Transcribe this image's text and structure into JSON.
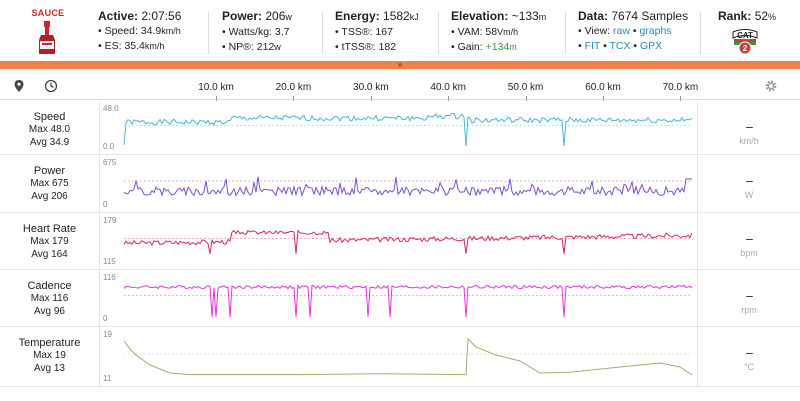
{
  "header": {
    "logo_text": "SAUCE",
    "active": {
      "label": "Active:",
      "value": "2:07:56",
      "speed_label": "• Speed:",
      "speed_value": "34.9",
      "speed_unit": "km/h",
      "es_label": "• ES:",
      "es_value": "35.4",
      "es_unit": "km/h"
    },
    "power": {
      "label": "Power:",
      "value": "206",
      "unit": "w",
      "wkg_label": "• Watts/kg:",
      "wkg_value": "3,7",
      "np_label": "• NP®:",
      "np_value": "212",
      "np_unit": "w"
    },
    "energy": {
      "label": "Energy:",
      "value": "1582",
      "unit": "kJ",
      "tss_label": "• TSS®:",
      "tss_value": "167",
      "ttss_label": "• tTSS®:",
      "ttss_value": "182"
    },
    "elevation": {
      "label": "Elevation:",
      "value": "~133",
      "unit": "m",
      "vam_label": "• VAM:",
      "vam_value": "58",
      "vam_unit": "Vm/h",
      "gain_label": "• Gain:",
      "gain_value": "+134",
      "gain_unit": "m"
    },
    "data": {
      "label": "Data:",
      "value": "7674 Samples",
      "view_label": "• View:",
      "view_raw": "raw",
      "view_sep": " • ",
      "view_graphs": "graphs",
      "fit": "FIT",
      "tcx": "TCX",
      "gpx": "GPX",
      "dot": " • ",
      "bullet": "• "
    },
    "rank": {
      "label": "Rank:",
      "value": "52",
      "unit": "%",
      "badge_text": "CAT",
      "badge_num": "2"
    },
    "expand_glyph": "»"
  },
  "toolbar": {
    "pin_icon": "map-pin-icon",
    "clock_icon": "clock-icon",
    "settings_icon": "gear-icon"
  },
  "axis": {
    "ticks": [
      "10.0 km",
      "20.0 km",
      "30.0 km",
      "40.0 km",
      "50.0 km",
      "60.0 km",
      "70.0 km"
    ]
  },
  "panels": [
    {
      "id": "speed",
      "title": "Speed",
      "max": "Max 48.0",
      "avg": "Avg 34.9",
      "ytop": "48.0",
      "ybot": "0.0",
      "value": "--",
      "unit": "km/h",
      "color": "#4bb3d9"
    },
    {
      "id": "power",
      "title": "Power",
      "max": "Max 675",
      "avg": "Avg 206",
      "ytop": "675",
      "ybot": "0",
      "value": "--",
      "unit": "W",
      "color": "#7b4fd1"
    },
    {
      "id": "hr",
      "title": "Heart Rate",
      "max": "Max 179",
      "avg": "Avg 164",
      "ytop": "179",
      "ybot": "115",
      "value": "--",
      "unit": "bpm",
      "color": "#d3285a"
    },
    {
      "id": "cadence",
      "title": "Cadence",
      "max": "Max 116",
      "avg": "Avg 96",
      "ytop": "116",
      "ybot": "0",
      "value": "--",
      "unit": "rpm",
      "color": "#e433e4"
    },
    {
      "id": "temp",
      "title": "Temperature",
      "max": "Max 19",
      "avg": "Avg 13",
      "ytop": "19",
      "ybot": "11",
      "value": "--",
      "unit": "°C",
      "color": "#b5a56a"
    }
  ]
}
